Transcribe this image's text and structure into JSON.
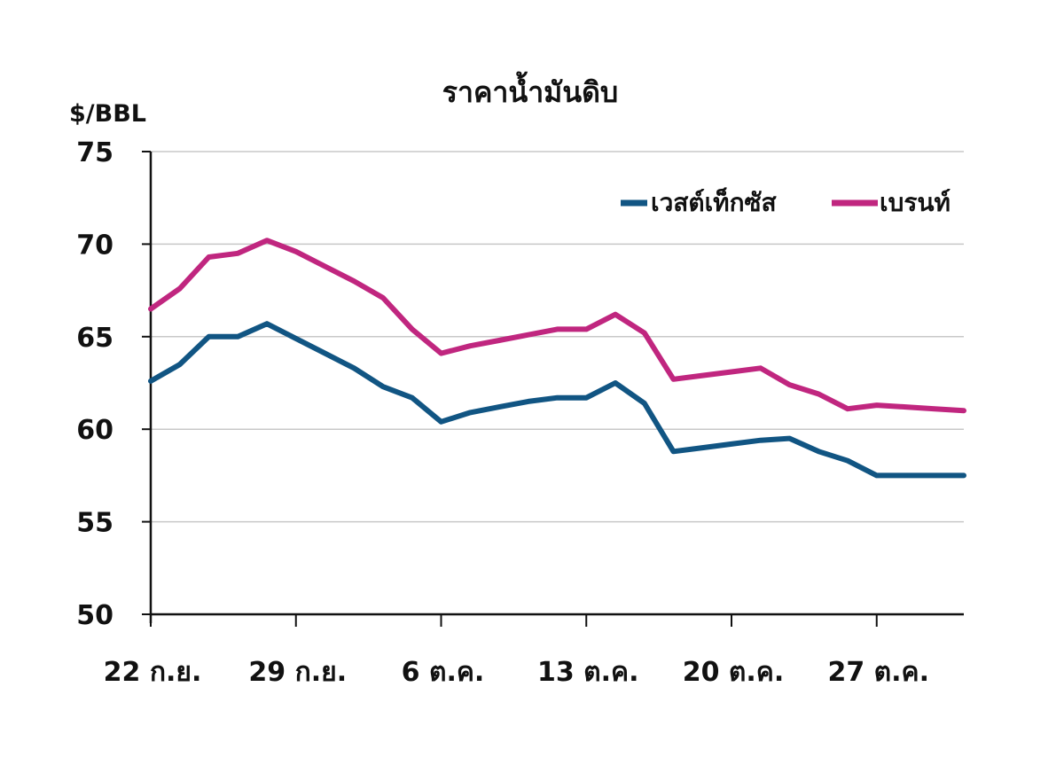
{
  "chart_data": {
    "type": "line",
    "title": "ราคาน้ำมันดิบ",
    "ylabel": "$/BBL",
    "xlabel": "",
    "ylim": [
      50,
      75
    ],
    "yticks": [
      50,
      55,
      60,
      65,
      70,
      75
    ],
    "grid": true,
    "legend_position": "top-right",
    "x_tick_labels": [
      {
        "label": "22 ก.ย.",
        "index": 0
      },
      {
        "label": "29 ก.ย.",
        "index": 5
      },
      {
        "label": "6 ต.ค.",
        "index": 10
      },
      {
        "label": "13 ต.ค.",
        "index": 15
      },
      {
        "label": "20 ต.ค.",
        "index": 20
      },
      {
        "label": "27 ต.ค.",
        "index": 25
      }
    ],
    "n_points": 29,
    "series": [
      {
        "name": "เวสต์เท็กซัส",
        "color": "#115583",
        "values": [
          62.6,
          63.5,
          65.0,
          65.0,
          65.7,
          64.9,
          64.1,
          63.3,
          62.3,
          61.7,
          60.4,
          60.9,
          61.2,
          61.5,
          61.7,
          61.7,
          62.5,
          61.4,
          58.8,
          59.0,
          59.2,
          59.4,
          59.5,
          58.8,
          58.3,
          57.5,
          57.5,
          57.5,
          57.5
        ]
      },
      {
        "name": "เบรนท์",
        "color": "#C0267F",
        "values": [
          66.5,
          67.6,
          69.3,
          69.5,
          70.2,
          69.6,
          68.8,
          68.0,
          67.1,
          65.4,
          64.1,
          64.5,
          64.8,
          65.1,
          65.4,
          65.4,
          66.2,
          65.2,
          62.7,
          62.9,
          63.1,
          63.3,
          62.4,
          61.9,
          61.1,
          61.3,
          61.2,
          61.1,
          61.0
        ]
      }
    ]
  }
}
